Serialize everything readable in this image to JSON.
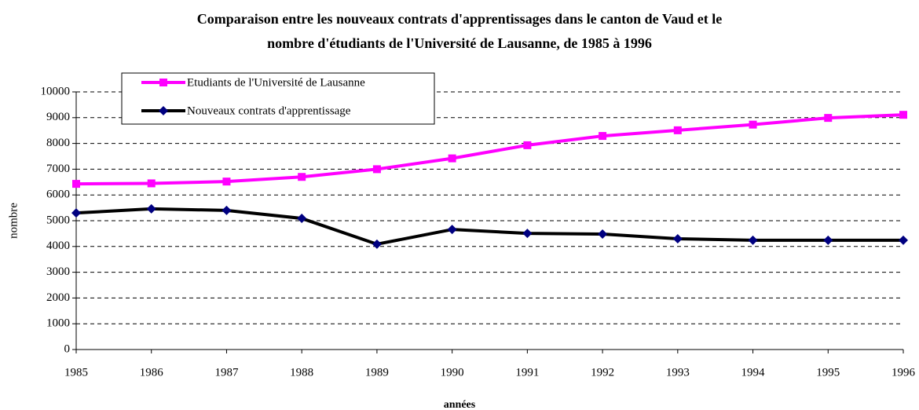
{
  "chart_data": {
    "type": "line",
    "title": [
      "Comparaison entre les nouveaux contrats d'apprentissages dans le canton de Vaud et le",
      "nombre d'étudiants de l'Université de Lausanne, de 1985 à 1996"
    ],
    "x_label": "années",
    "y_label": "nombre",
    "x": [
      1985,
      1986,
      1987,
      1988,
      1989,
      1990,
      1991,
      1992,
      1993,
      1994,
      1995,
      1996
    ],
    "xlim": [
      1985,
      1996
    ],
    "xticks": [
      1985,
      1986,
      1987,
      1988,
      1989,
      1990,
      1991,
      1992,
      1993,
      1994,
      1995,
      1996
    ],
    "ylim": [
      0,
      10000
    ],
    "yticks": [
      0,
      1000,
      2000,
      3000,
      4000,
      5000,
      6000,
      7000,
      8000,
      9000,
      10000
    ],
    "grid": true,
    "legend": "top-left",
    "series": [
      {
        "name": "Etudiants de l'Université de Lausanne",
        "color": "#ff00ff",
        "marker": "square",
        "values": [
          6430,
          6450,
          6520,
          6700,
          7000,
          7420,
          7930,
          8290,
          8510,
          8730,
          8990,
          9110
        ]
      },
      {
        "name": "Nouveaux contrats d'apprentissage",
        "color": "#000000",
        "marker_color": "#000080",
        "marker": "diamond",
        "values": [
          5300,
          5460,
          5400,
          5090,
          4090,
          4660,
          4510,
          4480,
          4300,
          4240,
          4240,
          4240
        ]
      }
    ]
  }
}
